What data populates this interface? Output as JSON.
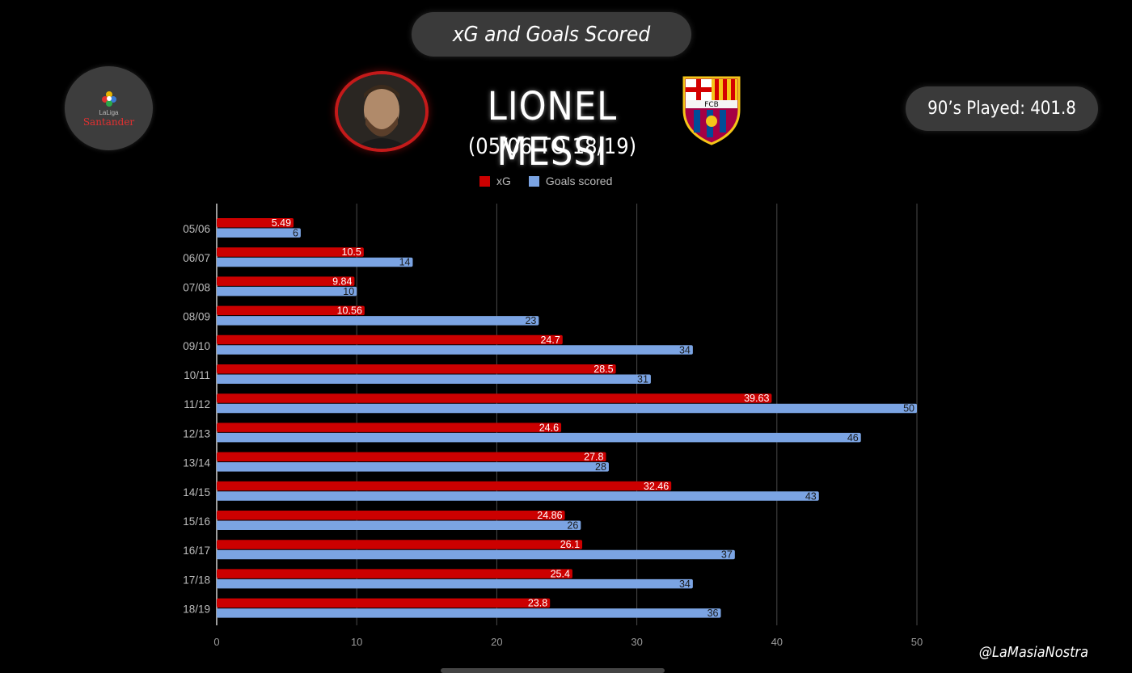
{
  "header": {
    "title": "xG and Goals Scored",
    "player_name": "LIONEL MESSI",
    "period": "(05/06 TO 18/19)",
    "nineties_played": "90’s Played: 401.8"
  },
  "league_badge": {
    "top_text": "LaLiga",
    "sponsor": "Santander"
  },
  "club_crest": {
    "initials": "FCB"
  },
  "credit": "@LaMasiaNostra",
  "colors": {
    "xg": "#cc0000",
    "goals": "#7ba4e3",
    "grid": "#4a4a4a"
  },
  "chart_data": {
    "type": "bar",
    "orientation": "horizontal",
    "categories": [
      "05/06",
      "06/07",
      "07/08",
      "08/09",
      "09/10",
      "10/11",
      "11/12",
      "12/13",
      "13/14",
      "14/15",
      "15/16",
      "16/17",
      "17/18",
      "18/19"
    ],
    "series": [
      {
        "name": "xG",
        "color": "#cc0000",
        "values": [
          5.49,
          10.5,
          9.84,
          10.56,
          24.7,
          28.5,
          39.63,
          24.6,
          27.8,
          32.46,
          24.86,
          26.1,
          25.4,
          23.8
        ],
        "labels": [
          "5.49",
          "10.5",
          "9.84",
          "10.56",
          "24.7",
          "28.5",
          "39.63",
          "24.6",
          "27.8",
          "32.46",
          "24.86",
          "26.1",
          "25.4",
          "23.8"
        ]
      },
      {
        "name": "Goals scored",
        "color": "#7ba4e3",
        "values": [
          6,
          14,
          10,
          23,
          34,
          31,
          50,
          46,
          28,
          43,
          26,
          37,
          34,
          36
        ],
        "labels": [
          "6",
          "14",
          "10",
          "23",
          "34",
          "31",
          "50",
          "46",
          "28",
          "43",
          "26",
          "37",
          "34",
          "36"
        ]
      }
    ],
    "xlim": [
      0,
      50
    ],
    "xticks": [
      0,
      10,
      20,
      30,
      40,
      50
    ],
    "grid": true,
    "legend_position": "top-center"
  }
}
